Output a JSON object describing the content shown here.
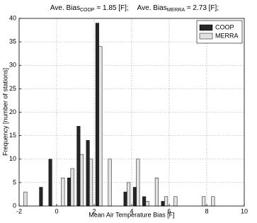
{
  "chart_data": {
    "type": "bar",
    "title_parts": [
      "Ave. Bias",
      "COOP",
      " = 1.85 [F];",
      "Ave. Bias",
      "MERRA",
      " = 2.73 [F];"
    ],
    "xlabel": "Mean Air Temperature Bias [F]",
    "ylabel": "Frequency [number of stations]",
    "x": [
      -1.75,
      -0.75,
      -0.25,
      0.25,
      0.75,
      1.25,
      1.75,
      2.25,
      2.75,
      3.75,
      4.25,
      4.75,
      5.25,
      5.75,
      6.25,
      7.75,
      8.25
    ],
    "series": [
      {
        "name": "COOP",
        "color": "#262626",
        "values": [
          0,
          4,
          10,
          0,
          6,
          17,
          14,
          39,
          0,
          3,
          4,
          2,
          0,
          1,
          0,
          0,
          0
        ]
      },
      {
        "name": "MERRA",
        "color": "#e3e3e3",
        "values": [
          3,
          0,
          0,
          6,
          8,
          11,
          10,
          34,
          10,
          5,
          10,
          1,
          6,
          2,
          2,
          2,
          2
        ]
      }
    ],
    "xlim": [
      -2,
      10
    ],
    "xticks": [
      -2,
      0,
      2,
      4,
      6,
      8,
      10
    ],
    "ylim": [
      0,
      40
    ],
    "yticks": [
      0,
      5,
      10,
      15,
      20,
      25,
      30,
      35,
      40
    ],
    "grid": true,
    "legend": "upper-right"
  }
}
